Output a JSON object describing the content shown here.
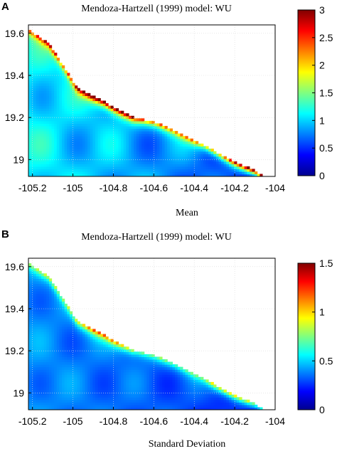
{
  "figure": {
    "panels": [
      {
        "letter": "A",
        "title": "Mendoza-Hartzell (1999) model: WU",
        "xlabel": "Mean"
      },
      {
        "letter": "B",
        "title": "Mendoza-Hartzell (1999) model: WU",
        "xlabel": "Standard Deviation"
      }
    ]
  },
  "chart_data": [
    {
      "type": "heatmap",
      "title": "Mendoza-Hartzell (1999) model: WU",
      "xlabel": "Mean",
      "ylabel": "",
      "xlim": [
        -105.22,
        -104.0
      ],
      "ylim": [
        18.92,
        19.64
      ],
      "xticks": [
        -105.2,
        -105,
        -104.8,
        -104.6,
        -104.4,
        -104.2,
        -104
      ],
      "xtick_labels": [
        "-105.2",
        "-105",
        "-104.8",
        "-104.6",
        "-104.4",
        "-104.2",
        "-104"
      ],
      "yticks": [
        19,
        19.2,
        19.4,
        19.6
      ],
      "ytick_labels": [
        "19",
        "19.2",
        "19.4",
        "19.6"
      ],
      "grid": true,
      "colormap": "jet",
      "colorbar": {
        "min": 0,
        "max": 3,
        "ticks": [
          0,
          0.5,
          1,
          1.5,
          2,
          2.5,
          3
        ],
        "tick_labels": [
          "0",
          "0.5",
          "1",
          "1.5",
          "2",
          "2.5",
          "3"
        ]
      },
      "coastline": [
        [
          -105.22,
          19.62
        ],
        [
          -105.12,
          19.55
        ],
        [
          -105.05,
          19.45
        ],
        [
          -104.98,
          19.34
        ],
        [
          -104.9,
          19.3
        ],
        [
          -104.85,
          19.28
        ],
        [
          -104.8,
          19.25
        ],
        [
          -104.7,
          19.2
        ],
        [
          -104.6,
          19.18
        ],
        [
          -104.5,
          19.14
        ],
        [
          -104.4,
          19.09
        ],
        [
          -104.35,
          19.07
        ],
        [
          -104.3,
          19.04
        ],
        [
          -104.2,
          18.99
        ],
        [
          -104.1,
          18.95
        ],
        [
          -104.06,
          18.92
        ]
      ],
      "field": {
        "offshore_min": 0.2,
        "interior_mean": 1.1,
        "coast_peak": 3.0
      }
    },
    {
      "type": "heatmap",
      "title": "Mendoza-Hartzell (1999) model: WU",
      "xlabel": "Standard Deviation",
      "ylabel": "",
      "xlim": [
        -105.22,
        -104.0
      ],
      "ylim": [
        18.92,
        19.64
      ],
      "xticks": [
        -105.2,
        -105,
        -104.8,
        -104.6,
        -104.4,
        -104.2,
        -104
      ],
      "xtick_labels": [
        "-105.2",
        "-105",
        "-104.8",
        "-104.6",
        "-104.4",
        "-104.2",
        "-104"
      ],
      "yticks": [
        19,
        19.2,
        19.4,
        19.6
      ],
      "ytick_labels": [
        "19",
        "19.2",
        "19.4",
        "19.6"
      ],
      "grid": true,
      "colormap": "jet",
      "colorbar": {
        "min": 0,
        "max": 1.5,
        "ticks": [
          0,
          0.5,
          1,
          1.5
        ],
        "tick_labels": [
          "0",
          "0.5",
          "1",
          "1.5"
        ]
      },
      "coastline": [
        [
          -105.22,
          19.62
        ],
        [
          -105.12,
          19.55
        ],
        [
          -105.05,
          19.45
        ],
        [
          -104.98,
          19.34
        ],
        [
          -104.9,
          19.3
        ],
        [
          -104.85,
          19.28
        ],
        [
          -104.8,
          19.25
        ],
        [
          -104.7,
          19.2
        ],
        [
          -104.6,
          19.18
        ],
        [
          -104.5,
          19.14
        ],
        [
          -104.4,
          19.09
        ],
        [
          -104.35,
          19.07
        ],
        [
          -104.3,
          19.04
        ],
        [
          -104.2,
          18.99
        ],
        [
          -104.1,
          18.95
        ],
        [
          -104.06,
          18.92
        ]
      ],
      "field": {
        "offshore_min": 0.1,
        "interior_mean": 0.4,
        "coast_peak": 1.3
      }
    }
  ]
}
